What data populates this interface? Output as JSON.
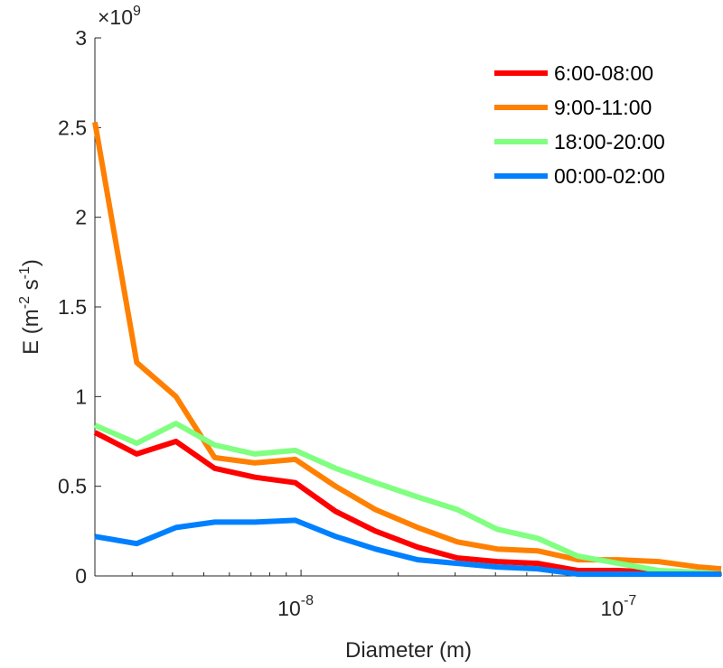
{
  "chart_data": {
    "type": "line",
    "xlabel": "Diameter (m)",
    "ylabel": {
      "base": "E (m",
      "sup1": "-2",
      "mid": " s",
      "sup2": "-1",
      "tail": ")"
    },
    "x_scale": "log",
    "xlim": [
      2.3e-09,
      2e-07
    ],
    "ylim": [
      0,
      3
    ],
    "y_multiplier": {
      "base": "×10",
      "exp": "9"
    },
    "y_ticks": [
      {
        "value": 0,
        "label": "0"
      },
      {
        "value": 0.5,
        "label": "0.5"
      },
      {
        "value": 1,
        "label": "1"
      },
      {
        "value": 1.5,
        "label": "1.5"
      },
      {
        "value": 2,
        "label": "2"
      },
      {
        "value": 2.5,
        "label": "2.5"
      },
      {
        "value": 3,
        "label": "3"
      }
    ],
    "x_major_ticks": [
      {
        "value": 1e-08,
        "base": "10",
        "exp": "-8"
      },
      {
        "value": 1e-07,
        "base": "10",
        "exp": "-7"
      }
    ],
    "x": [
      2.3e-09,
      3.1e-09,
      4.1e-09,
      5.4e-09,
      7.2e-09,
      9.6e-09,
      1.28e-08,
      1.7e-08,
      2.3e-08,
      3.05e-08,
      4.05e-08,
      5.4e-08,
      7.2e-08,
      9.6e-08,
      1.28e-07,
      1.7e-07,
      2e-07
    ],
    "series": [
      {
        "name": "6:00-08:00",
        "color": "#ff0000",
        "values": [
          0.8,
          0.68,
          0.75,
          0.6,
          0.55,
          0.52,
          0.36,
          0.25,
          0.16,
          0.1,
          0.08,
          0.07,
          0.03,
          0.03,
          0.02,
          0.01,
          0.01
        ]
      },
      {
        "name": "9:00-11:00",
        "color": "#ff8000",
        "values": [
          2.53,
          1.19,
          1.0,
          0.66,
          0.63,
          0.65,
          0.5,
          0.37,
          0.27,
          0.19,
          0.15,
          0.14,
          0.09,
          0.09,
          0.08,
          0.05,
          0.04
        ]
      },
      {
        "name": "18:00-20:00",
        "color": "#80ff80",
        "values": [
          0.84,
          0.74,
          0.85,
          0.73,
          0.68,
          0.7,
          0.6,
          0.52,
          0.44,
          0.37,
          0.26,
          0.21,
          0.11,
          0.07,
          0.03,
          0.02,
          0.01
        ]
      },
      {
        "name": "00:00-02:00",
        "color": "#0080ff",
        "values": [
          0.22,
          0.18,
          0.27,
          0.3,
          0.3,
          0.31,
          0.22,
          0.15,
          0.09,
          0.07,
          0.05,
          0.04,
          0.01,
          0.01,
          0.01,
          0.01,
          0.01
        ]
      }
    ],
    "grid": false,
    "legend_position": "top-right"
  }
}
